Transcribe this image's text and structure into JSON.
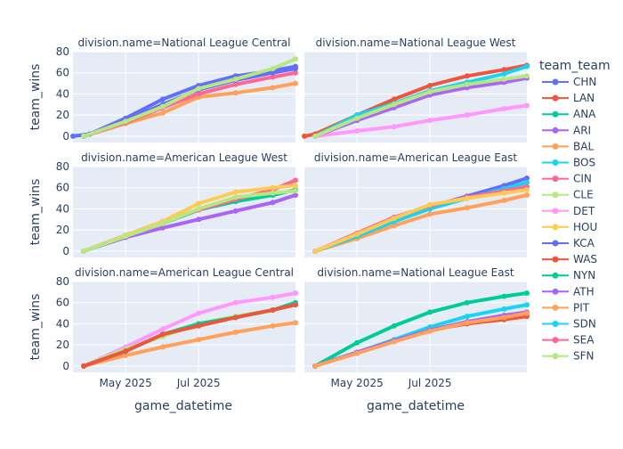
{
  "chart_data": {
    "type": "line",
    "xlabel": "game_datetime",
    "ylabel": "team_wins",
    "x_range": [
      "2025-03-18",
      "2025-09-20"
    ],
    "x_ticks": [
      {
        "date": "2025-05-01",
        "label": "May 2025"
      },
      {
        "date": "2025-07-01",
        "label": "Jul 2025"
      }
    ],
    "ylim": [
      -6,
      80
    ],
    "y_ticks": [
      0,
      20,
      40,
      60,
      80
    ],
    "legend": {
      "title": "team_team",
      "position": "right"
    },
    "colors": {
      "CHN": "#636efa",
      "LAN": "#EF553B",
      "ANA": "#00cc96",
      "ARI": "#ab63fa",
      "BAL": "#FFA15A",
      "BOS": "#19d3f3",
      "CIN": "#FF6692",
      "CLE": "#B6E880",
      "DET": "#FF97FF",
      "HOU": "#FECB52",
      "KCA": "#636efa",
      "WAS": "#EF553B",
      "NYN": "#00cc96",
      "ATH": "#ab63fa",
      "PIT": "#FFA15A",
      "SDN": "#19d3f3",
      "SEA": "#FF6692",
      "SFN": "#B6E880"
    },
    "panels": [
      {
        "title": "division.name=National League Central",
        "series": [
          {
            "name": "CHN",
            "x": [
              "2025-03-18",
              "2025-04-01",
              "2025-05-01",
              "2025-06-01",
              "2025-07-01",
              "2025-08-01",
              "2025-09-01",
              "2025-09-20"
            ],
            "y": [
              0,
              2,
              17,
              35,
              48,
              57,
              62,
              66
            ]
          },
          {
            "name": "PIT",
            "x": [
              "2025-03-27",
              "2025-05-01",
              "2025-06-01",
              "2025-07-01",
              "2025-08-01",
              "2025-09-01",
              "2025-09-20"
            ],
            "y": [
              0,
              12,
              22,
              37,
              41,
              46,
              50
            ]
          },
          {
            "name": "CIN",
            "x": [
              "2025-03-27",
              "2025-05-01",
              "2025-06-01",
              "2025-07-01",
              "2025-08-01",
              "2025-09-01",
              "2025-09-20"
            ],
            "y": [
              0,
              13,
              27,
              40,
              49,
              56,
              60
            ]
          },
          {
            "name": "KCA",
            "x": [
              "2025-03-27",
              "2025-05-01",
              "2025-06-01",
              "2025-07-01",
              "2025-08-01",
              "2025-09-01",
              "2025-09-20"
            ],
            "y": [
              0,
              15,
              30,
              44,
              53,
              60,
              64
            ]
          },
          {
            "name": "SFN",
            "x": [
              "2025-03-27",
              "2025-05-01",
              "2025-06-01",
              "2025-07-01",
              "2025-08-01",
              "2025-09-01",
              "2025-09-20"
            ],
            "y": [
              0,
              14,
              28,
              45,
              54,
              64,
              73
            ]
          }
        ]
      },
      {
        "title": "division.name=National League West",
        "series": [
          {
            "name": "LAN",
            "x": [
              "2025-03-18",
              "2025-03-27",
              "2025-05-01",
              "2025-06-01",
              "2025-07-01",
              "2025-08-01",
              "2025-09-01",
              "2025-09-20"
            ],
            "y": [
              0,
              2,
              20,
              35,
              48,
              57,
              63,
              67
            ]
          },
          {
            "name": "DET",
            "x": [
              "2025-03-27",
              "2025-05-01",
              "2025-06-01",
              "2025-07-01",
              "2025-08-01",
              "2025-09-01",
              "2025-09-20"
            ],
            "y": [
              0,
              5,
              9,
              15,
              20,
              26,
              29
            ]
          },
          {
            "name": "ATH",
            "x": [
              "2025-03-27",
              "2025-05-01",
              "2025-06-01",
              "2025-07-01",
              "2025-08-01",
              "2025-09-01",
              "2025-09-20"
            ],
            "y": [
              0,
              15,
              27,
              39,
              46,
              51,
              55
            ]
          },
          {
            "name": "SDN",
            "x": [
              "2025-03-27",
              "2025-05-01",
              "2025-06-01",
              "2025-07-01",
              "2025-08-01",
              "2025-09-01",
              "2025-09-20"
            ],
            "y": [
              0,
              20,
              31,
              43,
              51,
              59,
              66
            ]
          },
          {
            "name": "SFN",
            "x": [
              "2025-03-27",
              "2025-05-01",
              "2025-06-01",
              "2025-07-01",
              "2025-08-01",
              "2025-09-01",
              "2025-09-20"
            ],
            "y": [
              0,
              17,
              30,
              42,
              49,
              54,
              57
            ]
          }
        ]
      },
      {
        "title": "division.name=American League West",
        "series": [
          {
            "name": "ANA",
            "x": [
              "2025-03-27",
              "2025-05-01",
              "2025-06-01",
              "2025-07-01",
              "2025-08-01",
              "2025-09-01",
              "2025-09-20"
            ],
            "y": [
              0,
              14,
              26,
              39,
              47,
              53,
              58
            ]
          },
          {
            "name": "ATH",
            "x": [
              "2025-03-27",
              "2025-05-01",
              "2025-06-01",
              "2025-07-01",
              "2025-08-01",
              "2025-09-01",
              "2025-09-20"
            ],
            "y": [
              0,
              13,
              22,
              30,
              38,
              46,
              53
            ]
          },
          {
            "name": "SEA",
            "x": [
              "2025-03-27",
              "2025-05-01",
              "2025-06-01",
              "2025-07-01",
              "2025-08-01",
              "2025-09-01",
              "2025-09-20"
            ],
            "y": [
              0,
              15,
              28,
              39,
              49,
              58,
              67
            ]
          },
          {
            "name": "HOU",
            "x": [
              "2025-03-27",
              "2025-05-01",
              "2025-06-01",
              "2025-07-01",
              "2025-08-01",
              "2025-09-01",
              "2025-09-20"
            ],
            "y": [
              0,
              15,
              28,
              45,
              56,
              60,
              62
            ]
          },
          {
            "name": "CLE",
            "x": [
              "2025-03-27",
              "2025-05-01",
              "2025-06-01",
              "2025-07-01",
              "2025-08-01",
              "2025-09-01",
              "2025-09-20"
            ],
            "y": [
              0,
              14,
              26,
              40,
              51,
              55,
              57
            ]
          }
        ]
      },
      {
        "title": "division.name=American League East",
        "series": [
          {
            "name": "KCA",
            "x": [
              "2025-03-27",
              "2025-05-01",
              "2025-06-01",
              "2025-07-01",
              "2025-08-01",
              "2025-09-01",
              "2025-09-20"
            ],
            "y": [
              0,
              15,
              30,
              42,
              52,
              62,
              69
            ]
          },
          {
            "name": "BAL",
            "x": [
              "2025-03-27",
              "2025-05-01",
              "2025-06-01",
              "2025-07-01",
              "2025-08-01",
              "2025-09-01",
              "2025-09-20"
            ],
            "y": [
              0,
              12,
              24,
              35,
              41,
              48,
              53
            ]
          },
          {
            "name": "BOS",
            "x": [
              "2025-03-27",
              "2025-05-01",
              "2025-06-01",
              "2025-07-01",
              "2025-08-01",
              "2025-09-01",
              "2025-09-20"
            ],
            "y": [
              0,
              14,
              28,
              40,
              50,
              59,
              65
            ]
          },
          {
            "name": "SEA",
            "x": [
              "2025-03-27",
              "2025-05-01",
              "2025-06-01",
              "2025-07-01",
              "2025-08-01",
              "2025-09-01",
              "2025-09-20"
            ],
            "y": [
              0,
              17,
              32,
              43,
              51,
              57,
              61
            ]
          },
          {
            "name": "HOU",
            "x": [
              "2025-03-27",
              "2025-05-01",
              "2025-06-01",
              "2025-07-01",
              "2025-08-01",
              "2025-09-01",
              "2025-09-20"
            ],
            "y": [
              0,
              16,
              31,
              44,
              50,
              55,
              58
            ]
          }
        ]
      },
      {
        "title": "division.name=American League Central",
        "series": [
          {
            "name": "DET",
            "x": [
              "2025-03-27",
              "2025-05-01",
              "2025-06-01",
              "2025-07-01",
              "2025-08-01",
              "2025-09-01",
              "2025-09-20"
            ],
            "y": [
              0,
              18,
              35,
              50,
              60,
              65,
              69
            ]
          },
          {
            "name": "PIT",
            "x": [
              "2025-03-27",
              "2025-05-01",
              "2025-06-01",
              "2025-07-01",
              "2025-08-01",
              "2025-09-01",
              "2025-09-20"
            ],
            "y": [
              0,
              10,
              18,
              25,
              32,
              38,
              41
            ]
          },
          {
            "name": "CLE",
            "x": [
              "2025-03-27",
              "2025-05-01",
              "2025-06-01",
              "2025-07-01",
              "2025-08-01",
              "2025-09-01",
              "2025-09-20"
            ],
            "y": [
              0,
              16,
              28,
              40,
              47,
              53,
              58
            ]
          },
          {
            "name": "ANA",
            "x": [
              "2025-03-27",
              "2025-05-01",
              "2025-06-01",
              "2025-07-01",
              "2025-08-01",
              "2025-09-01",
              "2025-09-20"
            ],
            "y": [
              0,
              14,
              30,
              40,
              46,
              53,
              60
            ]
          },
          {
            "name": "WAS",
            "x": [
              "2025-03-27",
              "2025-05-01",
              "2025-06-01",
              "2025-07-01",
              "2025-08-01",
              "2025-09-01",
              "2025-09-20"
            ],
            "y": [
              0,
              14,
              30,
              38,
              46,
              53,
              58
            ]
          }
        ]
      },
      {
        "title": "division.name=National League East",
        "series": [
          {
            "name": "NYN",
            "x": [
              "2025-03-27",
              "2025-05-01",
              "2025-06-01",
              "2025-07-01",
              "2025-08-01",
              "2025-09-01",
              "2025-09-20"
            ],
            "y": [
              0,
              22,
              38,
              51,
              60,
              66,
              69
            ]
          },
          {
            "name": "WAS",
            "x": [
              "2025-03-27",
              "2025-05-01",
              "2025-06-01",
              "2025-07-01",
              "2025-08-01",
              "2025-09-01",
              "2025-09-20"
            ],
            "y": [
              0,
              13,
              24,
              34,
              40,
              44,
              47
            ]
          },
          {
            "name": "SDN",
            "x": [
              "2025-03-27",
              "2025-05-01",
              "2025-06-01",
              "2025-07-01",
              "2025-08-01",
              "2025-09-01",
              "2025-09-20"
            ],
            "y": [
              0,
              13,
              25,
              37,
              47,
              54,
              58
            ]
          },
          {
            "name": "ATH",
            "x": [
              "2025-03-27",
              "2025-05-01",
              "2025-06-01",
              "2025-07-01",
              "2025-08-01",
              "2025-09-01",
              "2025-09-20"
            ],
            "y": [
              0,
              13,
              24,
              34,
              42,
              48,
              51
            ]
          },
          {
            "name": "PIT",
            "x": [
              "2025-03-27",
              "2025-05-01",
              "2025-06-01",
              "2025-07-01",
              "2025-08-01",
              "2025-09-01",
              "2025-09-20"
            ],
            "y": [
              0,
              12,
              23,
              33,
              41,
              46,
              50
            ]
          }
        ]
      }
    ]
  }
}
